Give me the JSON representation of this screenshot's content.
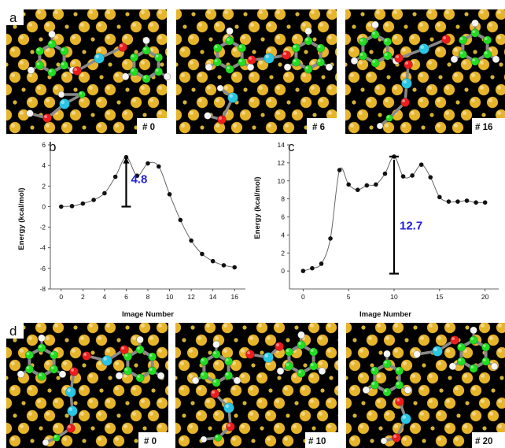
{
  "labels": {
    "a": "a",
    "b": "b",
    "c": "c",
    "d": "d"
  },
  "colors": {
    "gold": "#e7b52a",
    "gold_small": "#d6b431",
    "carbon": "#22dd22",
    "oxygen": "#ee1c1c",
    "hydrogen": "#f4f4f4",
    "metal_center": "#29c6e3",
    "bond": "#8a8a8a",
    "barrier_text": "#2222dd",
    "marker": "#111111"
  },
  "snapshots_top": [
    {
      "label": "# 0"
    },
    {
      "label": "# 6"
    },
    {
      "label": "# 16"
    }
  ],
  "snapshots_bottom": [
    {
      "label": "# 0"
    },
    {
      "label": "# 10"
    },
    {
      "label": "# 20"
    }
  ],
  "chart_data": [
    {
      "type": "line",
      "panel": "b",
      "ylabel": "Energy (kcal/mol)",
      "xlabel": "Image Number",
      "xlim": [
        -1,
        17
      ],
      "ylim": [
        -8,
        6
      ],
      "xticks": [
        0,
        2,
        4,
        6,
        8,
        10,
        12,
        14,
        16
      ],
      "yticks": [
        -8,
        -6,
        -4,
        -2,
        0,
        2,
        4,
        6
      ],
      "x": [
        0,
        1,
        2,
        3,
        4,
        5,
        6,
        7,
        8,
        9,
        10,
        11,
        12,
        13,
        14,
        15,
        16
      ],
      "y": [
        0.0,
        0.05,
        0.3,
        0.65,
        1.3,
        2.9,
        4.8,
        3.0,
        4.2,
        3.9,
        1.2,
        -1.3,
        -3.3,
        -4.6,
        -5.3,
        -5.7,
        -5.9
      ],
      "barrier": {
        "value": "4.8",
        "x": 6,
        "y_from": 0.0,
        "y_to": 4.8
      }
    },
    {
      "type": "line",
      "panel": "c",
      "ylabel": "Energy (kcal/mol)",
      "xlabel": "Image Number",
      "xlim": [
        -1.5,
        21.5
      ],
      "ylim": [
        -2,
        14
      ],
      "xticks": [
        0,
        5,
        10,
        15,
        20
      ],
      "yticks": [
        0,
        2,
        4,
        6,
        8,
        10,
        12,
        14
      ],
      "x": [
        0,
        1,
        2,
        3,
        4,
        5,
        6,
        7,
        8,
        9,
        10,
        11,
        12,
        13,
        14,
        15,
        16,
        17,
        18,
        19,
        20
      ],
      "y": [
        0.0,
        0.3,
        0.8,
        3.6,
        11.2,
        9.6,
        9.0,
        9.5,
        9.6,
        10.8,
        12.7,
        10.5,
        10.6,
        11.8,
        10.4,
        8.2,
        7.7,
        7.7,
        7.8,
        7.6,
        7.6
      ],
      "barrier": {
        "value": "12.7",
        "x": 10,
        "y_from": -0.3,
        "y_to": 12.7
      }
    }
  ]
}
